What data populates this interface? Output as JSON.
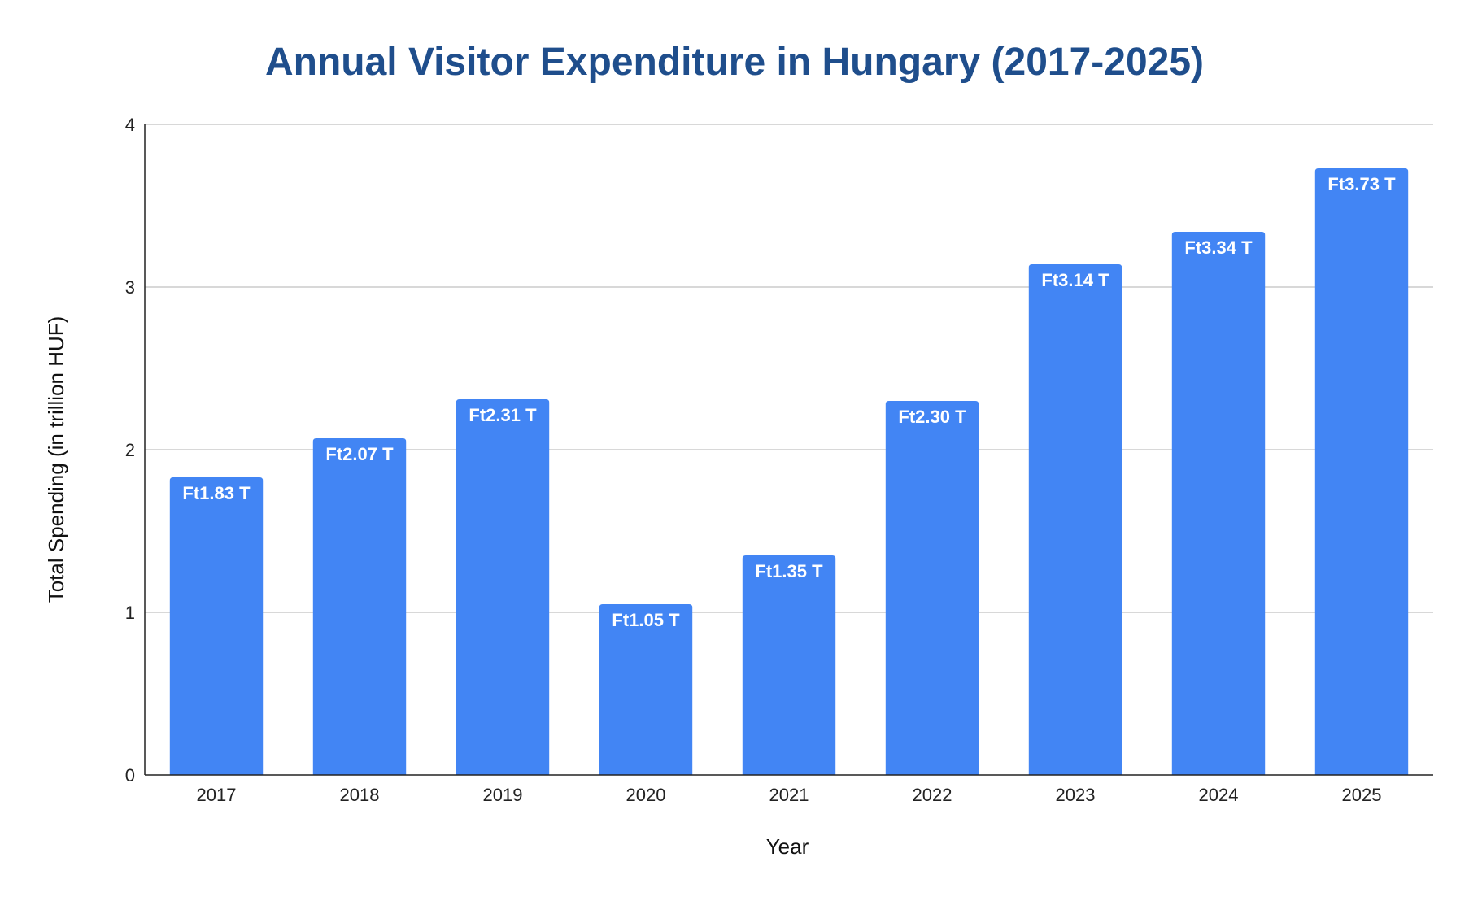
{
  "colors": {
    "bar": "#4285f4",
    "title": "#1f4e8c",
    "grid": "#cccccc",
    "axis": "#222222"
  },
  "chart_data": {
    "type": "bar",
    "title": "Annual Visitor Expenditure in Hungary (2017-2025)",
    "xlabel": "Year",
    "ylabel": "Total Spending (in trillion HUF)",
    "categories": [
      "2017",
      "2018",
      "2019",
      "2020",
      "2021",
      "2022",
      "2023",
      "2024",
      "2025"
    ],
    "values": [
      1.83,
      2.07,
      2.31,
      1.05,
      1.35,
      2.3,
      3.14,
      3.34,
      3.73
    ],
    "data_labels": [
      "Ft1.83 T",
      "Ft2.07 T",
      "Ft2.31 T",
      "Ft1.05 T",
      "Ft1.35 T",
      "Ft2.30 T",
      "Ft3.14 T",
      "Ft3.34 T",
      "Ft3.73 T"
    ],
    "ylim": [
      0,
      4
    ],
    "yticks": [
      "0",
      "1",
      "2",
      "3",
      "4"
    ],
    "grid": true,
    "legend": "none"
  }
}
